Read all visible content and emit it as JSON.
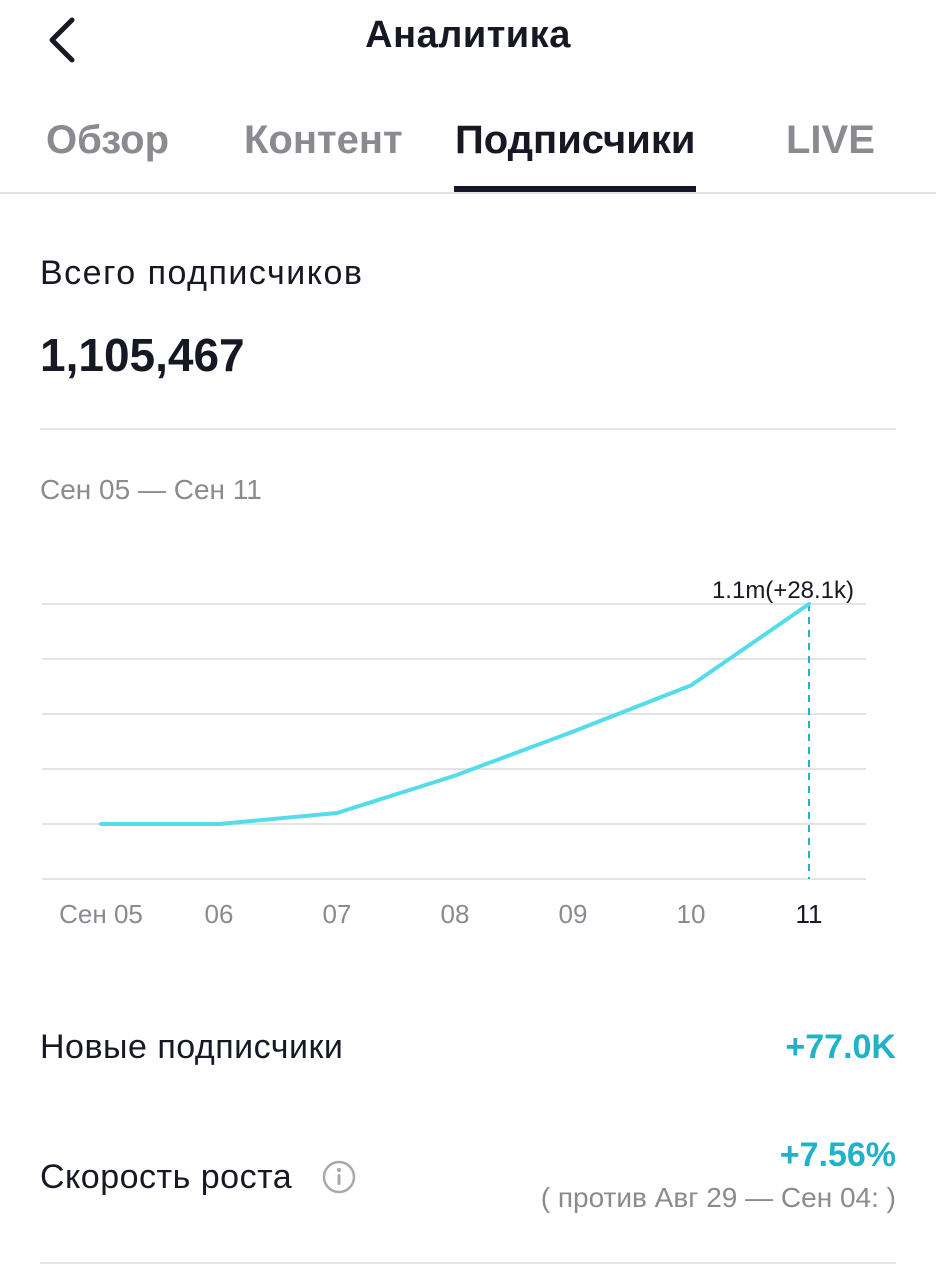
{
  "header": {
    "title": "Аналитика",
    "back_icon": "chevron-left-icon"
  },
  "tabs": [
    {
      "label": "Обзор",
      "active": false
    },
    {
      "label": "Контент",
      "active": false
    },
    {
      "label": "Подписчики",
      "active": true
    },
    {
      "label": "LIVE",
      "active": false
    }
  ],
  "summary": {
    "total_label": "Всего подписчиков",
    "total_value": "1,105,467",
    "date_range": "Сен 05 — Сен 11"
  },
  "chart_data": {
    "type": "line",
    "x": [
      "Сен 05",
      "06",
      "07",
      "08",
      "09",
      "10",
      "11"
    ],
    "values": [
      0.0,
      0.0,
      0.05,
      0.22,
      0.42,
      0.63,
      1.0
    ],
    "highlight_index": 6,
    "highlight_label": "1.1m(+28.1k)",
    "grid": true,
    "line_color": "#55dcea",
    "highlight_color": "#20b2c8"
  },
  "metrics": {
    "new_followers_label": "Новые подписчики",
    "new_followers_value": "+77.0K",
    "growth_label": "Скорость роста",
    "growth_value": "+7.56%",
    "growth_compare": "( против Авг 29 — Сен 04: )",
    "info_icon": "info-icon"
  },
  "colors": {
    "accent": "#20b2c8",
    "text": "#161823",
    "muted": "#8a8b91"
  }
}
